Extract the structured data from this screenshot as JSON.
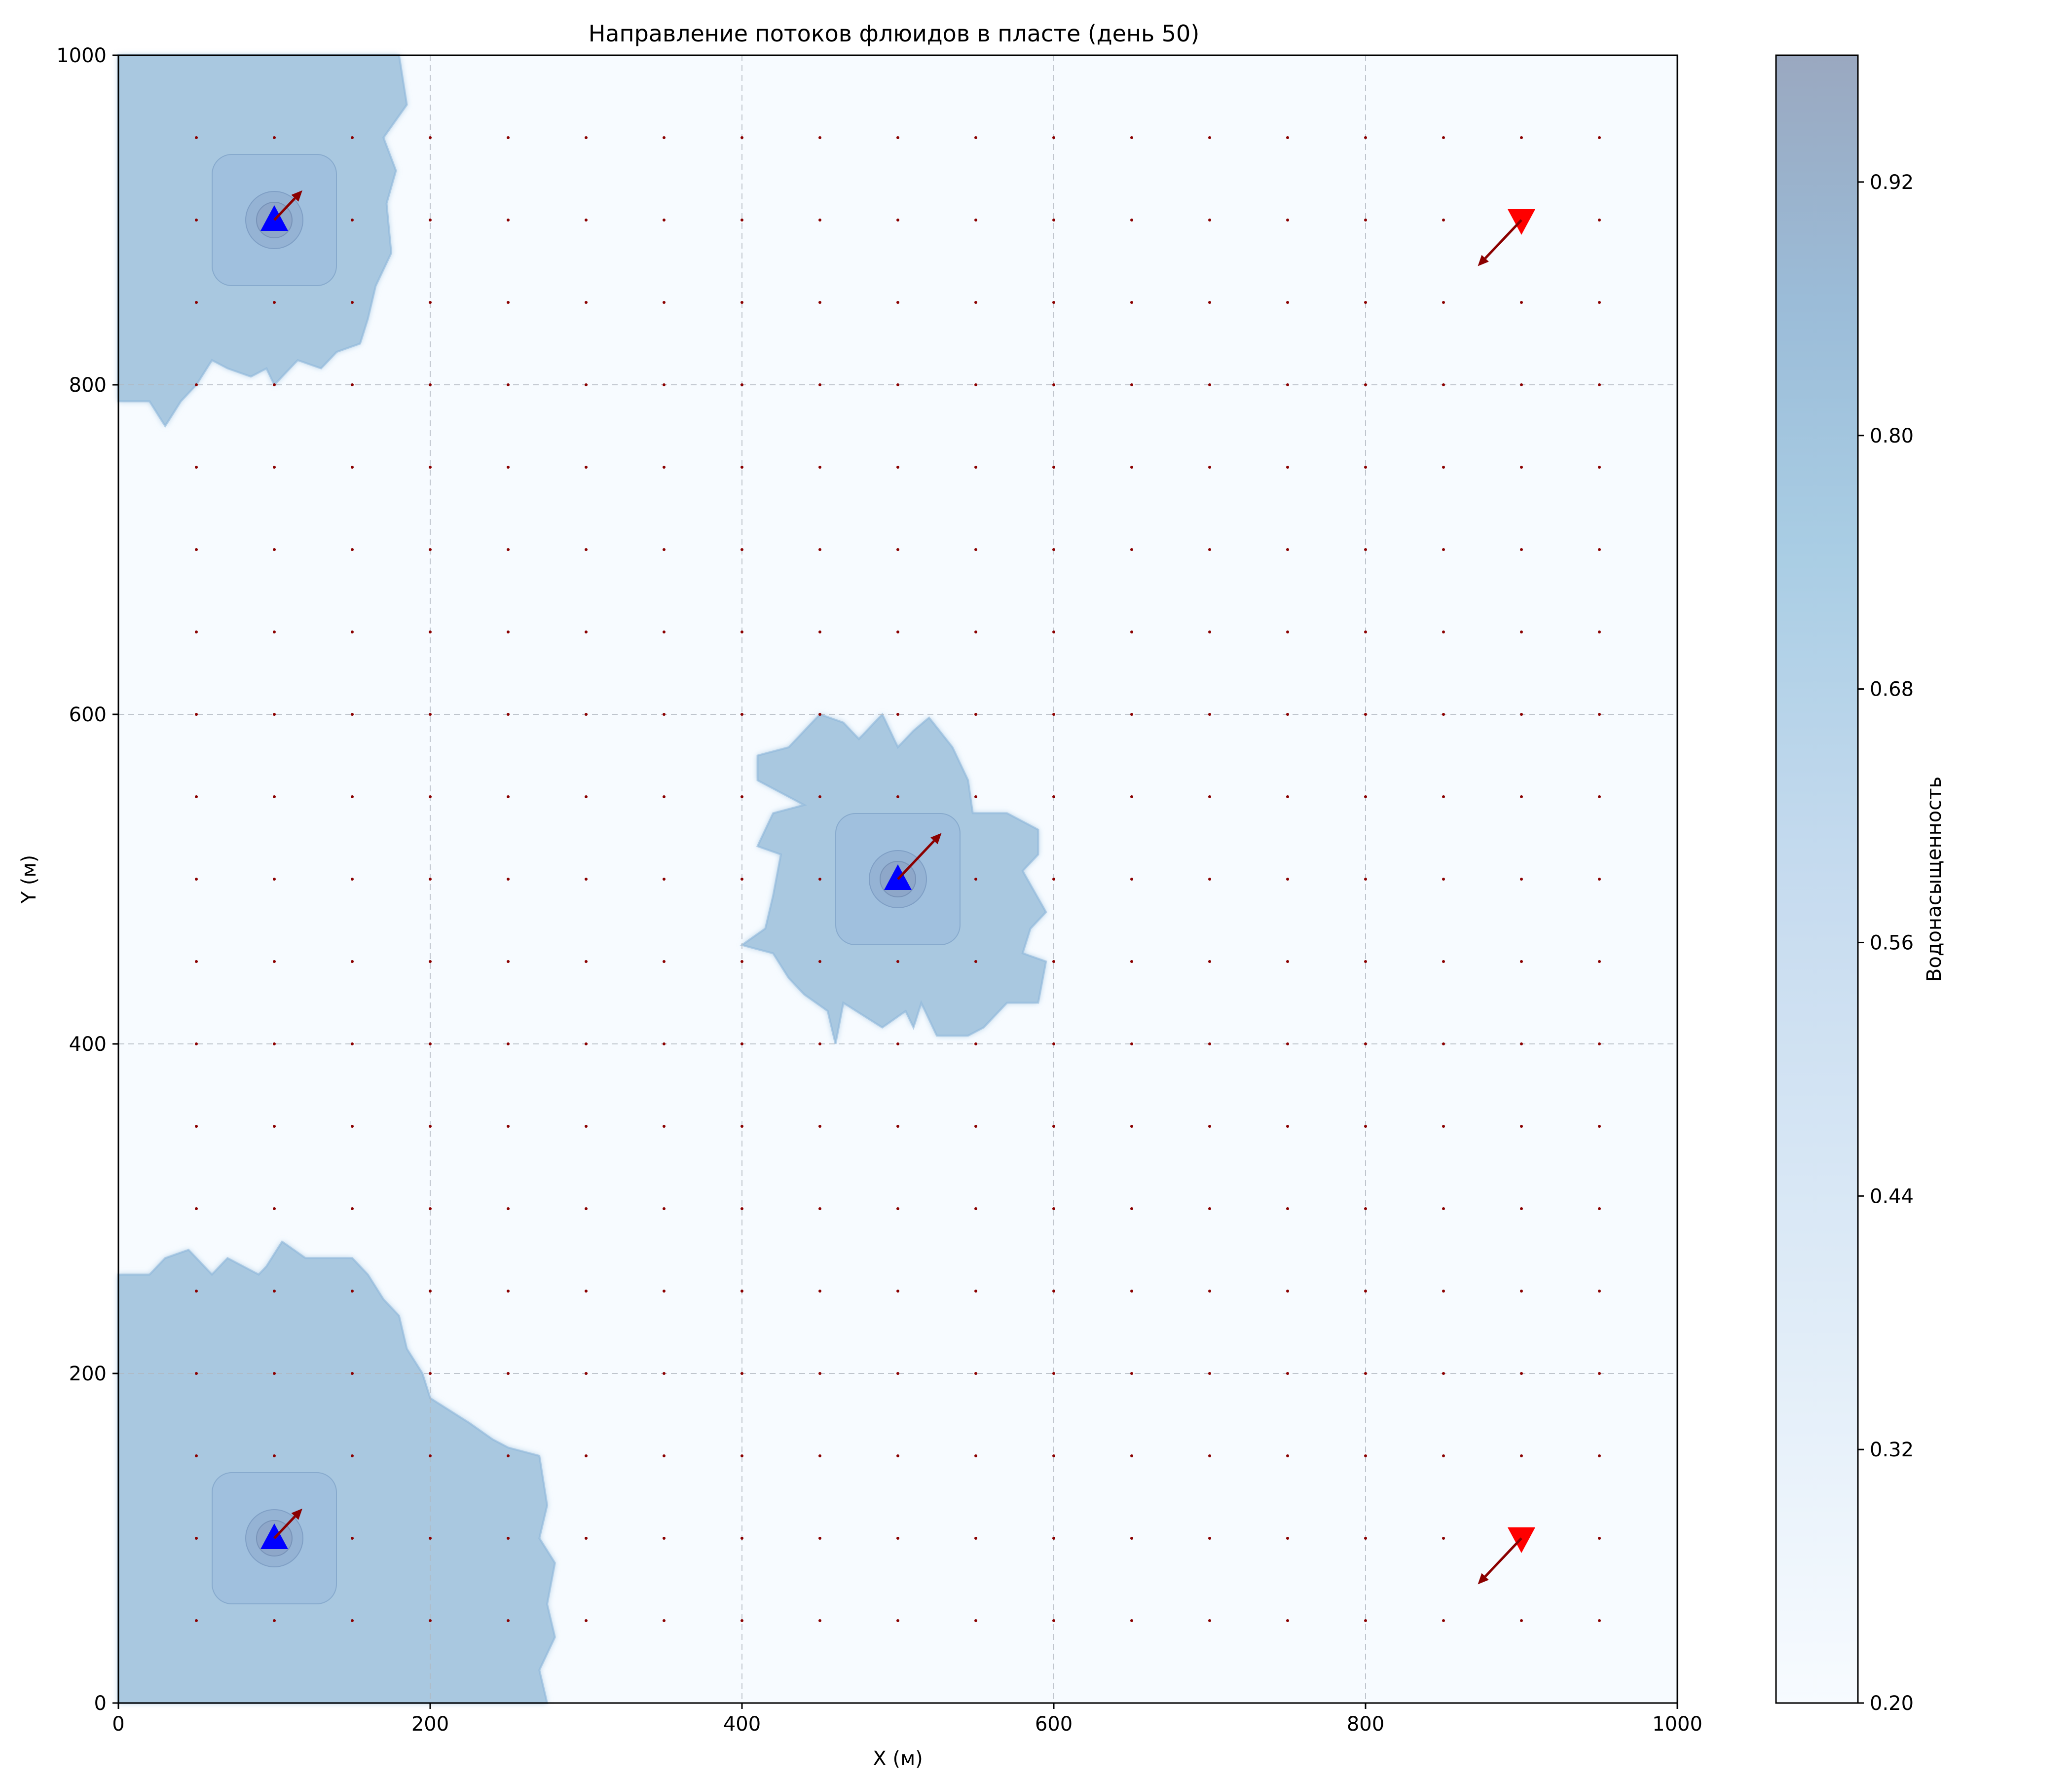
{
  "chart_data": {
    "type": "heatmap",
    "title": "Направление потоков флюидов в пласте (день 50)",
    "xlabel": "X (м)",
    "ylabel": "Y (м)",
    "xlim": [
      0,
      1000
    ],
    "ylim": [
      0,
      1000
    ],
    "x_ticks": [
      "0",
      "200",
      "400",
      "600",
      "800",
      "1000"
    ],
    "y_ticks": [
      "0",
      "200",
      "400",
      "600",
      "800",
      "1000"
    ],
    "grid": true,
    "colorbar": {
      "label": "Водонасыщенность",
      "range": [
        0.2,
        0.98
      ],
      "ticks": [
        "0.20",
        "0.32",
        "0.44",
        "0.56",
        "0.68",
        "0.80",
        "0.92"
      ],
      "colors": [
        "#f7fbff",
        "#c6dbef",
        "#9ecae1",
        "#6baed6",
        "#4b7fb0",
        "#3a5f8f"
      ]
    },
    "saturation_regions": [
      {
        "name": "top-left flooded zone",
        "saturation": 0.72,
        "boundary": [
          [
            0,
            1000
          ],
          [
            90,
            1000
          ],
          [
            180,
            1000
          ],
          [
            185,
            970
          ],
          [
            170,
            950
          ],
          [
            178,
            930
          ],
          [
            172,
            910
          ],
          [
            175,
            880
          ],
          [
            165,
            860
          ],
          [
            160,
            840
          ],
          [
            155,
            825
          ],
          [
            140,
            820
          ],
          [
            130,
            810
          ],
          [
            115,
            815
          ],
          [
            100,
            800
          ],
          [
            95,
            810
          ],
          [
            85,
            805
          ],
          [
            70,
            810
          ],
          [
            60,
            815
          ],
          [
            50,
            800
          ],
          [
            40,
            790
          ],
          [
            30,
            775
          ],
          [
            20,
            790
          ],
          [
            0,
            790
          ]
        ]
      },
      {
        "name": "center flooded zone",
        "saturation": 0.72,
        "boundary": [
          [
            450,
            600
          ],
          [
            465,
            595
          ],
          [
            475,
            585
          ],
          [
            490,
            600
          ],
          [
            500,
            580
          ],
          [
            510,
            590
          ],
          [
            520,
            598
          ],
          [
            535,
            580
          ],
          [
            545,
            560
          ],
          [
            548,
            540
          ],
          [
            570,
            540
          ],
          [
            590,
            530
          ],
          [
            590,
            515
          ],
          [
            580,
            505
          ],
          [
            595,
            480
          ],
          [
            585,
            470
          ],
          [
            580,
            455
          ],
          [
            595,
            450
          ],
          [
            590,
            425
          ],
          [
            570,
            425
          ],
          [
            555,
            410
          ],
          [
            545,
            405
          ],
          [
            525,
            405
          ],
          [
            515,
            425
          ],
          [
            510,
            410
          ],
          [
            505,
            420
          ],
          [
            490,
            410
          ],
          [
            465,
            425
          ],
          [
            460,
            400
          ],
          [
            455,
            420
          ],
          [
            440,
            430
          ],
          [
            430,
            440
          ],
          [
            420,
            455
          ],
          [
            400,
            460
          ],
          [
            415,
            470
          ],
          [
            420,
            490
          ],
          [
            425,
            515
          ],
          [
            410,
            520
          ],
          [
            420,
            540
          ],
          [
            440,
            545
          ],
          [
            410,
            560
          ],
          [
            410,
            575
          ],
          [
            430,
            580
          ]
        ]
      },
      {
        "name": "bottom-left flooded zone",
        "saturation": 0.72,
        "boundary": [
          [
            0,
            0
          ],
          [
            275,
            0
          ],
          [
            270,
            20
          ],
          [
            280,
            40
          ],
          [
            275,
            60
          ],
          [
            280,
            85
          ],
          [
            270,
            100
          ],
          [
            275,
            120
          ],
          [
            270,
            150
          ],
          [
            250,
            155
          ],
          [
            240,
            160
          ],
          [
            225,
            170
          ],
          [
            200,
            185
          ],
          [
            195,
            200
          ],
          [
            185,
            215
          ],
          [
            180,
            235
          ],
          [
            170,
            245
          ],
          [
            160,
            260
          ],
          [
            150,
            270
          ],
          [
            120,
            270
          ],
          [
            105,
            280
          ],
          [
            95,
            265
          ],
          [
            90,
            260
          ],
          [
            70,
            270
          ],
          [
            60,
            260
          ],
          [
            45,
            275
          ],
          [
            30,
            270
          ],
          [
            20,
            260
          ],
          [
            0,
            260
          ]
        ]
      }
    ],
    "injector_wells": [
      {
        "x": 100,
        "y": 900,
        "flow_u": 18,
        "flow_v": 18
      },
      {
        "x": 500,
        "y": 500,
        "flow_u": 28,
        "flow_v": 28
      },
      {
        "x": 100,
        "y": 100,
        "flow_u": 18,
        "flow_v": 18
      }
    ],
    "producer_wells": [
      {
        "x": 900,
        "y": 900,
        "flow_u": -28,
        "flow_v": -28
      },
      {
        "x": 900,
        "y": 100,
        "flow_u": -28,
        "flow_v": -28
      }
    ],
    "velocity_grid": {
      "x_values": [
        50,
        100,
        150,
        200,
        250,
        300,
        350,
        400,
        450,
        500,
        550,
        600,
        650,
        700,
        750,
        800,
        850,
        900,
        950
      ],
      "y_values": [
        50,
        100,
        150,
        200,
        250,
        300,
        350,
        400,
        450,
        500,
        550,
        600,
        650,
        700,
        750,
        800,
        850,
        900,
        950
      ],
      "marker_color": "#8b0000"
    }
  }
}
